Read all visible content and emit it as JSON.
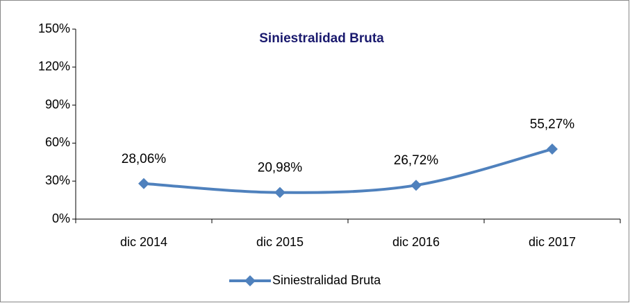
{
  "chart_data": {
    "type": "line",
    "title": "Siniestralidad Bruta",
    "categories": [
      "dic 2014",
      "dic 2015",
      "dic 2016",
      "dic 2017"
    ],
    "series": [
      {
        "name": "Siniestralidad Bruta",
        "color": "#4f81bd",
        "values": [
          28.06,
          20.98,
          26.72,
          55.27
        ],
        "value_labels": [
          "28,06%",
          "20,98%",
          "26,72%",
          "55,27%"
        ]
      }
    ],
    "ylim": [
      0,
      150
    ],
    "yticks": [
      {
        "value": 0,
        "label": "0%"
      },
      {
        "value": 30,
        "label": "30%"
      },
      {
        "value": 60,
        "label": "60%"
      },
      {
        "value": 90,
        "label": "90%"
      },
      {
        "value": 120,
        "label": "120%"
      },
      {
        "value": 150,
        "label": "150%"
      }
    ],
    "legend": "bottom"
  }
}
